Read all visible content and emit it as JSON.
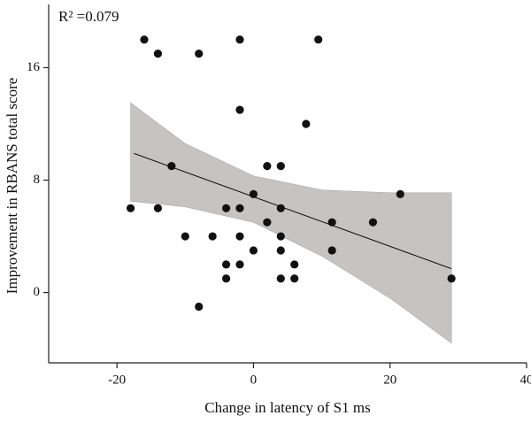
{
  "chart_data": {
    "type": "scatter",
    "annotation": "R² =0.079",
    "x_label": "Change in latency of S1 ms",
    "y_label": "Improvement in RBANS total score",
    "x": [
      -16,
      -14,
      -8,
      -2,
      9.5,
      -2,
      7.7,
      -12,
      2,
      4,
      0,
      21.5,
      -18,
      -14,
      -4,
      -2,
      4,
      2,
      11.5,
      17.5,
      -10,
      -6,
      -2,
      4,
      0,
      4,
      11.5,
      -4,
      -2,
      6,
      -4,
      4,
      6,
      29,
      -8
    ],
    "y": [
      18,
      17,
      17,
      18,
      18,
      13,
      12,
      9,
      9,
      9,
      7,
      7,
      6,
      6,
      6,
      6,
      6,
      5,
      5,
      5,
      4,
      4,
      4,
      4,
      3,
      3,
      3,
      2,
      2,
      2,
      1,
      1,
      1,
      1,
      -1
    ],
    "color": "#111111",
    "fit": {
      "x": [
        -17.5,
        29
      ],
      "y": [
        9.9,
        1.7
      ],
      "color": "#111111"
    },
    "band": {
      "x": [
        -18,
        -10,
        0,
        10,
        20,
        29
      ],
      "upper": [
        13.5,
        10.6,
        8.3,
        7.3,
        7.1,
        7.1
      ],
      "lower": [
        6.5,
        6.1,
        5.0,
        2.6,
        -0.4,
        -3.6
      ],
      "color": "#c6c3c3"
    },
    "xlim": [
      -30,
      40
    ],
    "xticks": [
      -20,
      0,
      20,
      40
    ],
    "ylim": [
      -5,
      20.5
    ],
    "yticks": [
      0,
      8,
      16
    ],
    "grid": false
  }
}
